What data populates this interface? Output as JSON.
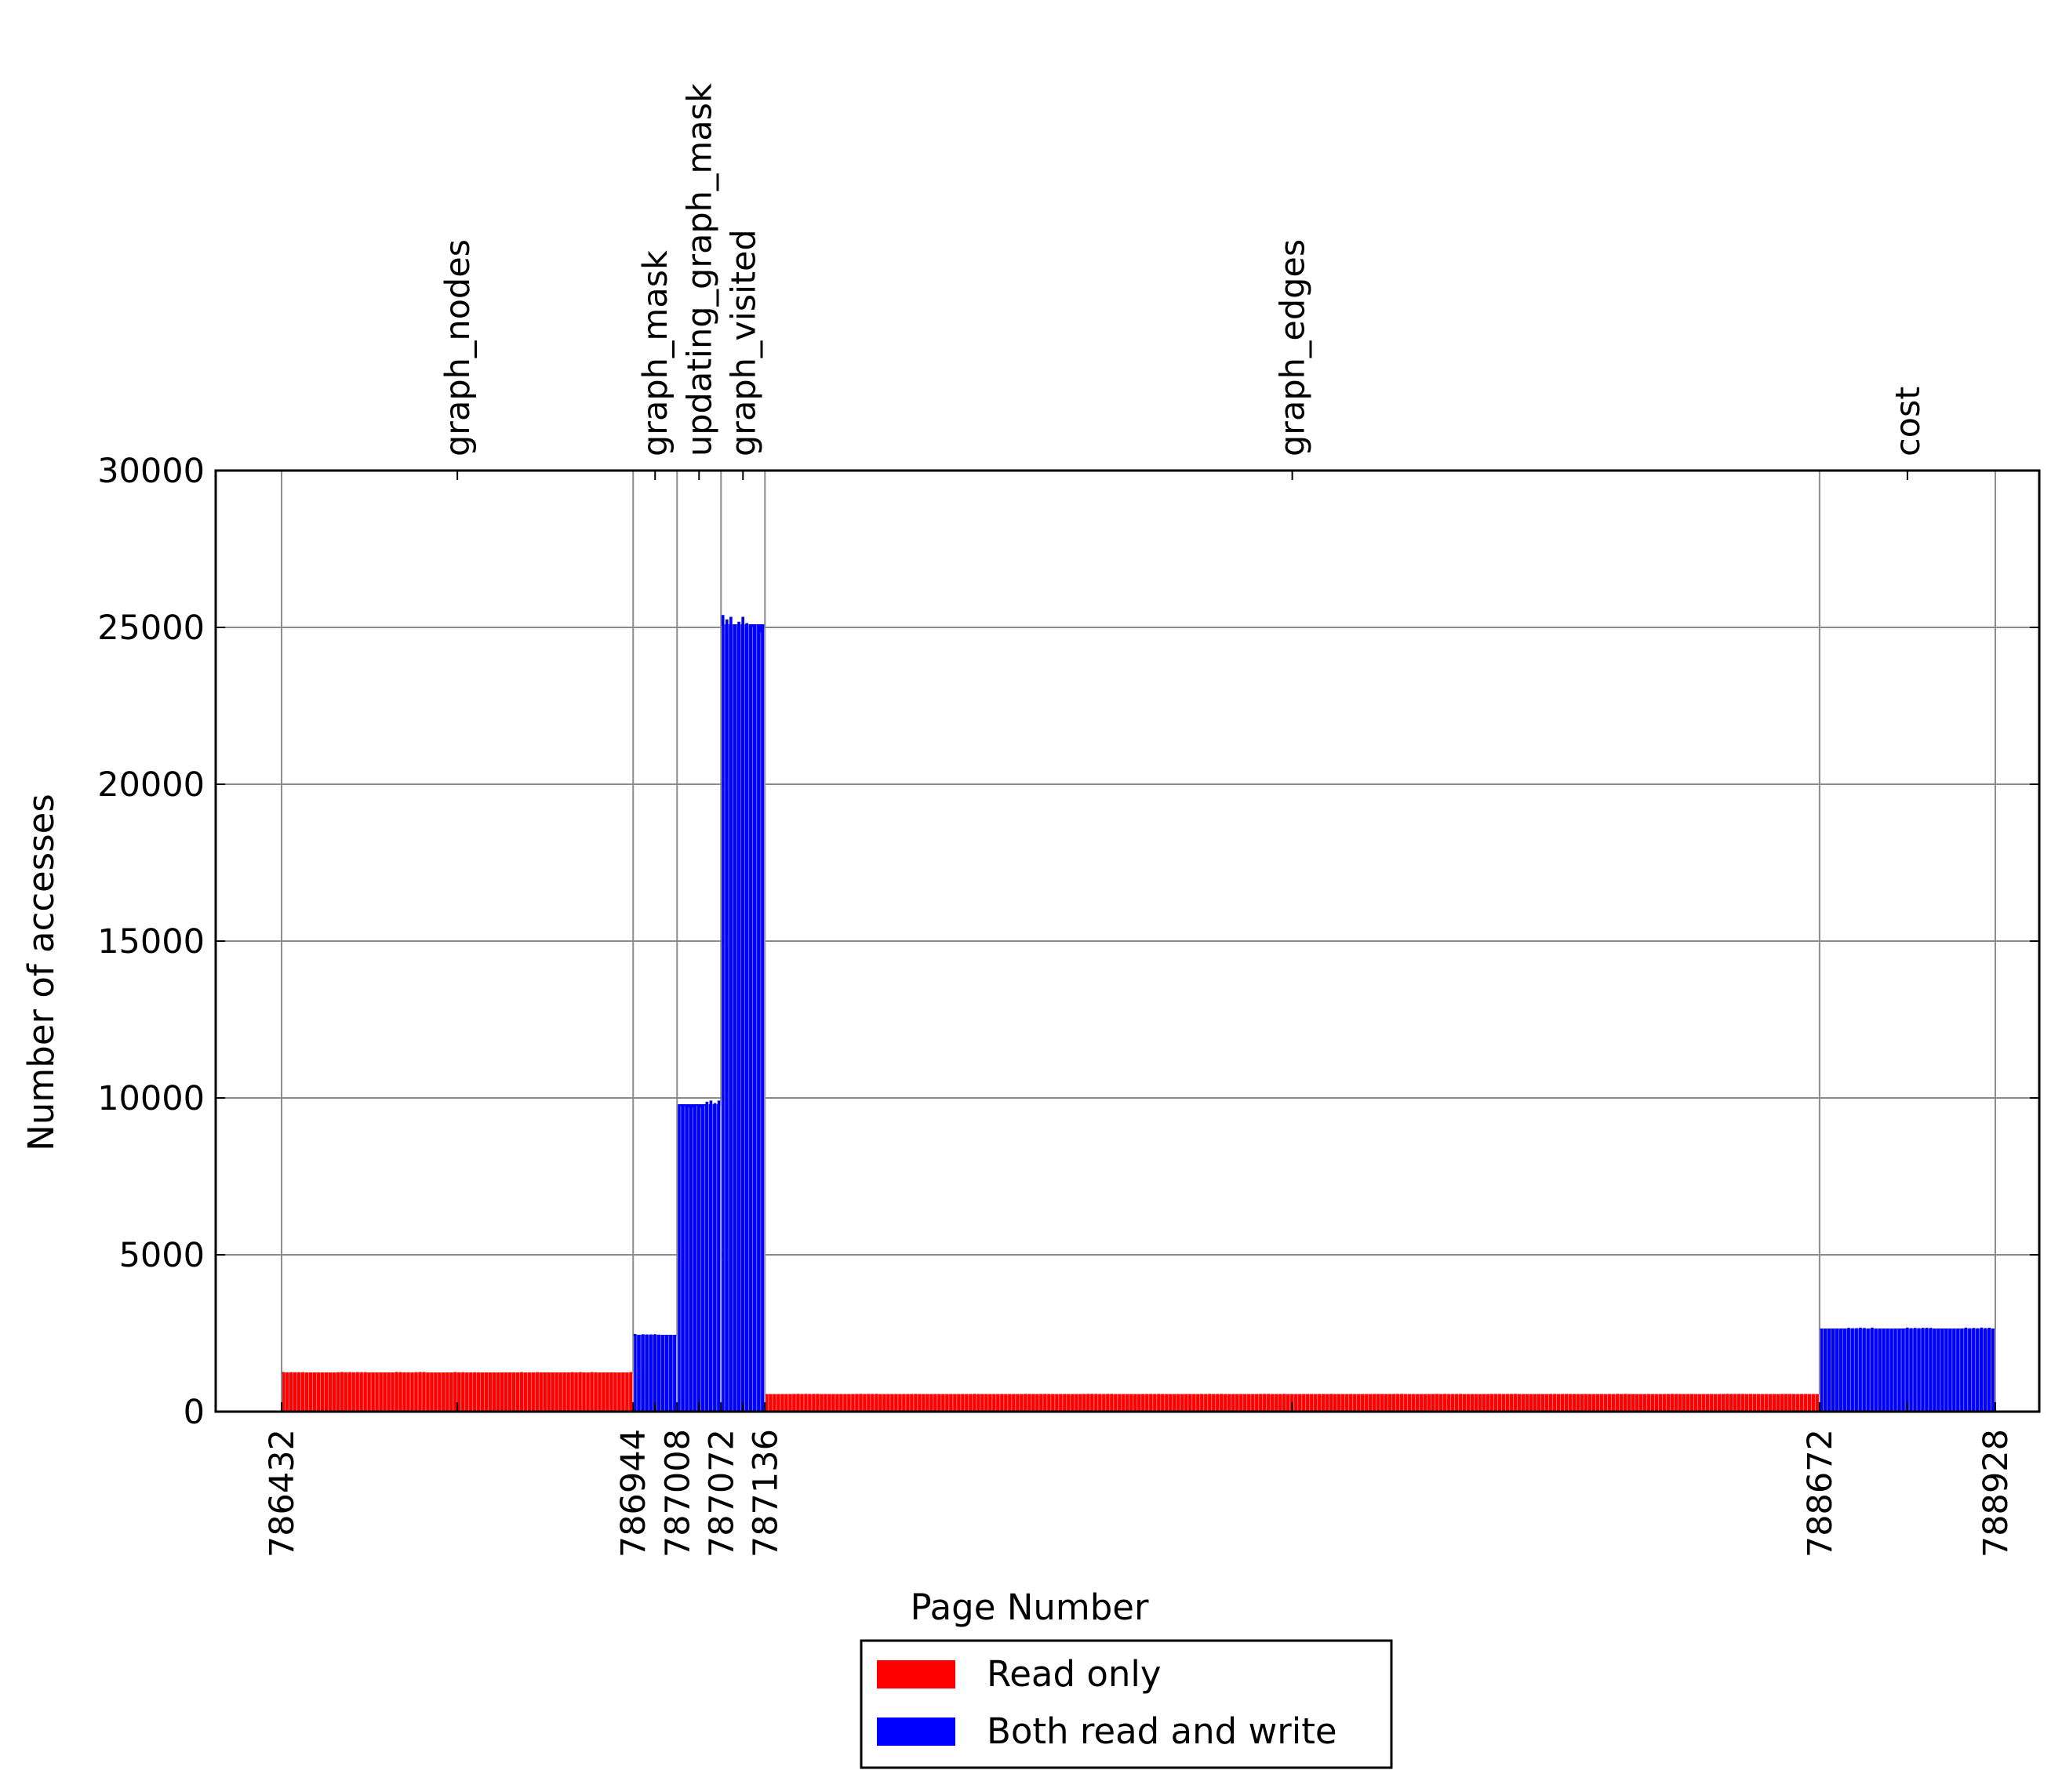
{
  "chart_data": {
    "type": "bar",
    "xlabel": "Page Number",
    "ylabel": "Number of accesses",
    "ylim": [
      0,
      30000
    ],
    "xlim": [
      786336,
      788992
    ],
    "yticks": [
      "0",
      "5000",
      "10000",
      "15000",
      "20000",
      "25000",
      "30000"
    ],
    "ytick_values": [
      0,
      5000,
      10000,
      15000,
      20000,
      25000,
      30000
    ],
    "xticks": [
      "786432",
      "786944",
      "787008",
      "787072",
      "787136",
      "788672",
      "788928"
    ],
    "xtick_values": [
      786432,
      786944,
      787008,
      787072,
      787136,
      788672,
      788928
    ],
    "grid": true,
    "legend_position": "bottom-center",
    "top_annotations": [
      {
        "label": "graph_nodes",
        "x": 786688
      },
      {
        "label": "graph_mask",
        "x": 786976
      },
      {
        "label": "updating_graph_mask",
        "x": 787040
      },
      {
        "label": "graph_visited",
        "x": 787104
      },
      {
        "label": "graph_edges",
        "x": 787904
      },
      {
        "label": "cost",
        "x": 788800
      }
    ],
    "series": [
      {
        "name": "Read only",
        "color": "#ff0000",
        "segments": [
          {
            "x_start": 786432,
            "x_end": 786944,
            "value": 1250
          },
          {
            "x_start": 787136,
            "x_end": 788672,
            "value": 560
          }
        ]
      },
      {
        "name": "Both read and write",
        "color": "#0000ff",
        "segments": [
          {
            "x_start": 786944,
            "x_end": 787008,
            "value": 2450
          },
          {
            "x_start": 787008,
            "x_end": 787072,
            "value": 9800
          },
          {
            "x_start": 787072,
            "x_end": 787136,
            "value": 25100
          },
          {
            "x_start": 788672,
            "x_end": 788928,
            "value": 2650
          }
        ]
      }
    ]
  }
}
